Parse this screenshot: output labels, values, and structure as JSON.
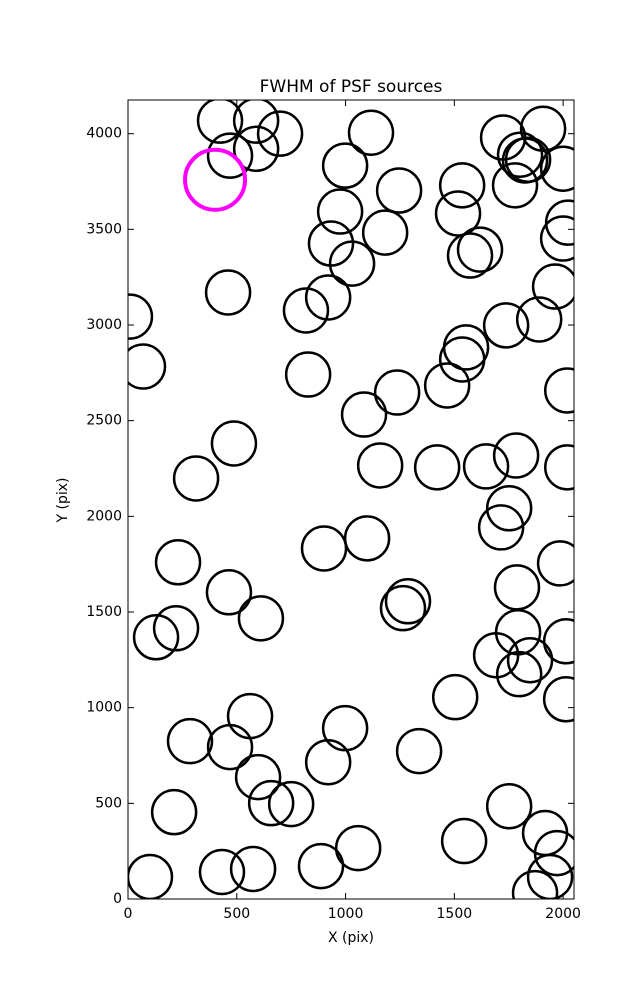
{
  "chart_data": {
    "type": "scatter",
    "title": "FWHM of PSF sources",
    "xlabel": "X (pix)",
    "ylabel": "Y (pix)",
    "xlim": [
      0,
      2050
    ],
    "ylim": [
      0,
      4176
    ],
    "xticks": [
      0,
      500,
      1000,
      1500,
      2000
    ],
    "yticks": [
      0,
      500,
      1000,
      1500,
      2000,
      2500,
      3000,
      3500,
      4000
    ],
    "series": [
      {
        "color": "#000000",
        "x": [
          423,
          589,
          699,
          469,
          589,
          1117,
          998,
          1246,
          975,
          933,
          1030,
          1182,
          920,
          818,
          460,
          9,
          69,
          828,
          1085,
          1237,
          487,
          313,
          1159,
          1421,
          1646,
          1784,
          1752,
          1715,
          901,
          1099,
          230,
          464,
          611,
          1287,
          1264,
          129,
          221,
          1788,
          1793,
          1692,
          1848,
          1798,
          1504,
          561,
          285,
          469,
          998,
          920,
          1338,
          598,
          658,
          750,
          212,
          1752,
          1545,
          1058,
          887,
          575,
          432,
          101,
          1917,
          1972,
          1940,
          1871,
          1724,
          1825,
          1908,
          2000,
          1779,
          1536,
          1517,
          1572,
          1618,
          2023,
          2000,
          1963,
          1890,
          1738,
          1554,
          1536,
          1467,
          2019,
          2019,
          1986,
          2014,
          2014,
          1839,
          1802
        ],
        "y": [
          4068,
          4068,
          4000,
          3885,
          3921,
          4005,
          3833,
          3703,
          3593,
          3426,
          3321,
          3483,
          3144,
          3076,
          3170,
          3044,
          2783,
          2741,
          2532,
          2647,
          2381,
          2198,
          2266,
          2256,
          2261,
          2318,
          2042,
          1942,
          1832,
          1885,
          1760,
          1603,
          1467,
          1556,
          1520,
          1368,
          1415,
          1629,
          1394,
          1274,
          1248,
          1175,
          1055,
          956,
          825,
          794,
          893,
          715,
          773,
          637,
          501,
          496,
          454,
          485,
          303,
          266,
          172,
          157,
          141,
          115,
          345,
          240,
          115,
          31,
          3980,
          3860,
          4026,
          3817,
          3730,
          3730,
          3583,
          3363,
          3394,
          3535,
          3452,
          3201,
          3029,
          2998,
          2883,
          2820,
          2684,
          2658,
          2256,
          1754,
          1347,
          1044,
          3864,
          3890
        ]
      },
      {
        "color": "#ff00ff",
        "x": [
          400
        ],
        "y": [
          3759
        ]
      }
    ]
  }
}
